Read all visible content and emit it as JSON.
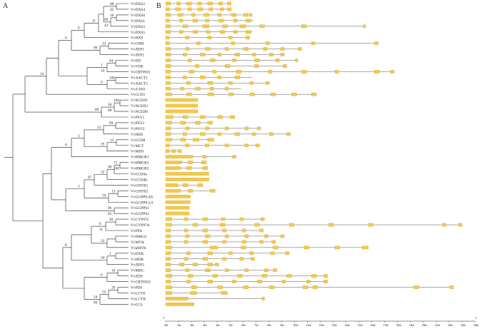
{
  "panel_labels": {
    "a": "A",
    "b": "B"
  },
  "genes": [
    {
      "name": "VvDXS2"
    },
    {
      "name": "VvDXS4"
    },
    {
      "name": "VvDXS6"
    },
    {
      "name": "VvDXS1"
    },
    {
      "name": "VvDXS3"
    },
    {
      "name": "VvDXS5"
    },
    {
      "name": "VvHXS"
    },
    {
      "name": "VvCMK"
    },
    {
      "name": "VvZEP1"
    },
    {
      "name": "VvZEP2"
    },
    {
      "name": "VvIDI"
    },
    {
      "name": "VvVDE"
    },
    {
      "name": "VvCRTISO1"
    },
    {
      "name": "VvAACT1"
    },
    {
      "name": "VvAACT2"
    },
    {
      "name": "VvZ-ISO"
    },
    {
      "name": "VvCCD1"
    },
    {
      "name": "VvNCED1"
    },
    {
      "name": "VvNCED2"
    },
    {
      "name": "VvNCED6"
    },
    {
      "name": "VvPSY1"
    },
    {
      "name": "VvPSY2"
    },
    {
      "name": "VvPSY3"
    },
    {
      "name": "VvHDS"
    },
    {
      "name": "VvCCD8"
    },
    {
      "name": "VvMCT"
    },
    {
      "name": "VvMDS"
    },
    {
      "name": "VvHMGR1"
    },
    {
      "name": "VvHMGR2"
    },
    {
      "name": "VvHMGR3"
    },
    {
      "name": "VvCCD4a"
    },
    {
      "name": "VvCCD4b"
    },
    {
      "name": "VvCHYB1"
    },
    {
      "name": "VvCHYB2"
    },
    {
      "name": "VvGGPPS-SS"
    },
    {
      "name": "VvGGPPS-LS"
    },
    {
      "name": "VvGGPPS1"
    },
    {
      "name": "VvGGPPS2"
    },
    {
      "name": "VvCYP97C"
    },
    {
      "name": "VvCYP97A"
    },
    {
      "name": "VvFPS"
    },
    {
      "name": "VvHMGS"
    },
    {
      "name": "VvMVK"
    },
    {
      "name": "VvpMVK"
    },
    {
      "name": "VvDXR"
    },
    {
      "name": "VvHDR"
    },
    {
      "name": "VvZEP3"
    },
    {
      "name": "VvMDC"
    },
    {
      "name": "VvZDS"
    },
    {
      "name": "VvCRTISO2"
    },
    {
      "name": "VvPDS"
    },
    {
      "name": "VvLCYE"
    },
    {
      "name": "VvLCYB"
    },
    {
      "name": "VvCCS"
    }
  ],
  "bootstrap": [
    {
      "value": "88"
    },
    {
      "value": "42"
    },
    {
      "value": "50"
    },
    {
      "value": "99"
    },
    {
      "value": "43"
    },
    {
      "value": "11"
    },
    {
      "value": "0"
    },
    {
      "value": "33"
    },
    {
      "value": "99"
    },
    {
      "value": "0"
    },
    {
      "value": "44"
    },
    {
      "value": "1"
    },
    {
      "value": "24"
    },
    {
      "value": "100"
    },
    {
      "value": "0"
    },
    {
      "value": "14"
    },
    {
      "value": "56"
    },
    {
      "value": "100"
    },
    {
      "value": "68"
    },
    {
      "value": "80"
    },
    {
      "value": "99"
    },
    {
      "value": "13"
    },
    {
      "value": "3"
    },
    {
      "value": "13"
    },
    {
      "value": "29"
    },
    {
      "value": "72"
    },
    {
      "value": "100"
    },
    {
      "value": "32"
    },
    {
      "value": "0"
    },
    {
      "value": "90"
    },
    {
      "value": "97"
    },
    {
      "value": "1"
    },
    {
      "value": "13"
    },
    {
      "value": "59"
    },
    {
      "value": "96"
    },
    {
      "value": "92"
    },
    {
      "value": "30"
    },
    {
      "value": "0"
    },
    {
      "value": "11"
    },
    {
      "value": "33"
    },
    {
      "value": "1"
    },
    {
      "value": "34"
    },
    {
      "value": "0"
    },
    {
      "value": "16"
    },
    {
      "value": "6"
    },
    {
      "value": "29"
    },
    {
      "value": "55"
    },
    {
      "value": "54"
    },
    {
      "value": "99"
    }
  ],
  "axis": {
    "start_label": "5'",
    "end_label": "3'",
    "ticks": [
      "0kb",
      "1kb",
      "2kb",
      "3kb",
      "4kb",
      "5kb",
      "6kb",
      "7kb",
      "8kb",
      "9kb",
      "10kb",
      "11kb",
      "12kb",
      "13kb",
      "14kb",
      "15kb",
      "16kb",
      "17kb",
      "18kb",
      "19kb",
      "20kb",
      "21kb",
      "22kb",
      "23kb",
      "24kb"
    ]
  },
  "colors": {
    "exon": "#f4c84a",
    "intron": "#555555",
    "tree": "#222222"
  }
}
